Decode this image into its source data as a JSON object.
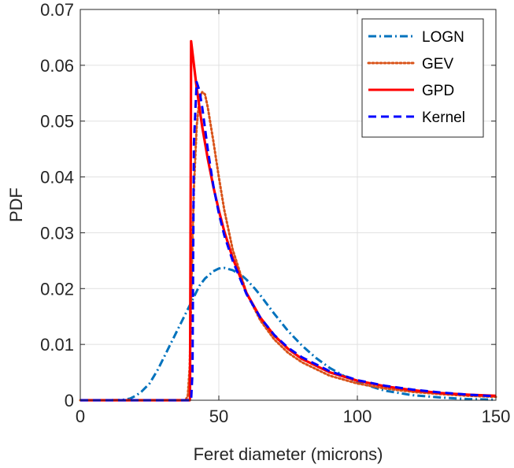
{
  "chart_data": {
    "type": "line",
    "xlabel": "Feret diameter (microns)",
    "ylabel": "PDF",
    "xlim": [
      0,
      150
    ],
    "ylim": [
      0,
      0.07
    ],
    "xticks": [
      0,
      50,
      100,
      150
    ],
    "xtick_labels": [
      "0",
      "50",
      "100",
      "150"
    ],
    "yticks": [
      0,
      0.01,
      0.02,
      0.03,
      0.04,
      0.05,
      0.06,
      0.07
    ],
    "ytick_labels": [
      "0",
      "0.01",
      "0.02",
      "0.03",
      "0.04",
      "0.05",
      "0.06",
      "0.07"
    ],
    "grid": true,
    "legend_position": "top-right",
    "series": [
      {
        "name": "LOGN",
        "color": "#0072BD",
        "style": "dashdot",
        "x": [
          0,
          10,
          15,
          18,
          20,
          22,
          25,
          28,
          30,
          33,
          35,
          38,
          40,
          43,
          45,
          48,
          50,
          52,
          55,
          58,
          60,
          63,
          65,
          68,
          70,
          75,
          80,
          85,
          90,
          95,
          100,
          110,
          120,
          130,
          140,
          150
        ],
        "y": [
          0,
          0,
          5e-05,
          0.0003,
          0.0008,
          0.0015,
          0.003,
          0.0055,
          0.0075,
          0.0105,
          0.0125,
          0.0155,
          0.0175,
          0.0205,
          0.0218,
          0.0231,
          0.0236,
          0.0237,
          0.0233,
          0.0225,
          0.0216,
          0.02,
          0.0188,
          0.0168,
          0.0155,
          0.0124,
          0.0098,
          0.0076,
          0.0058,
          0.0044,
          0.0032,
          0.0017,
          0.0009,
          0.0005,
          0.0002,
          0.0001
        ]
      },
      {
        "name": "GEV",
        "color": "#D95319",
        "style": "dotted",
        "x": [
          0,
          38,
          38.8,
          39.5,
          40,
          41,
          42,
          43,
          44,
          45,
          46,
          48,
          50,
          52,
          55,
          60,
          65,
          70,
          75,
          80,
          90,
          100,
          110,
          120,
          130,
          140,
          150
        ],
        "y": [
          0,
          0,
          0.0008,
          0.006,
          0.018,
          0.038,
          0.049,
          0.054,
          0.0552,
          0.0548,
          0.0525,
          0.0465,
          0.04,
          0.034,
          0.027,
          0.0192,
          0.0143,
          0.0109,
          0.0085,
          0.0068,
          0.0044,
          0.003,
          0.0021,
          0.0015,
          0.0011,
          0.0008,
          0.0006
        ]
      },
      {
        "name": "GPD",
        "color": "#FF0000",
        "style": "solid",
        "x": [
          0,
          39.5,
          39.6,
          40,
          42,
          44,
          46,
          48,
          50,
          52,
          55,
          60,
          65,
          70,
          75,
          80,
          90,
          100,
          110,
          120,
          130,
          140,
          150
        ],
        "y": [
          0,
          0,
          0.0005,
          0.0643,
          0.056,
          0.049,
          0.0433,
          0.0383,
          0.034,
          0.0302,
          0.0255,
          0.0192,
          0.0148,
          0.0116,
          0.0092,
          0.0074,
          0.005,
          0.0035,
          0.0025,
          0.0018,
          0.0013,
          0.001,
          0.0008
        ]
      },
      {
        "name": "Kernel",
        "color": "#0000FF",
        "style": "dashed",
        "x": [
          0,
          40,
          40.5,
          41,
          42,
          43,
          44,
          46,
          48,
          50,
          52,
          55,
          60,
          65,
          70,
          75,
          80,
          90,
          100,
          110,
          120,
          130,
          140,
          150
        ],
        "y": [
          0,
          0,
          0.005,
          0.046,
          0.057,
          0.0555,
          0.0525,
          0.045,
          0.0385,
          0.0335,
          0.0295,
          0.025,
          0.019,
          0.0148,
          0.0117,
          0.0094,
          0.0077,
          0.0052,
          0.0036,
          0.0026,
          0.0019,
          0.0014,
          0.001,
          0.0007
        ]
      }
    ]
  }
}
